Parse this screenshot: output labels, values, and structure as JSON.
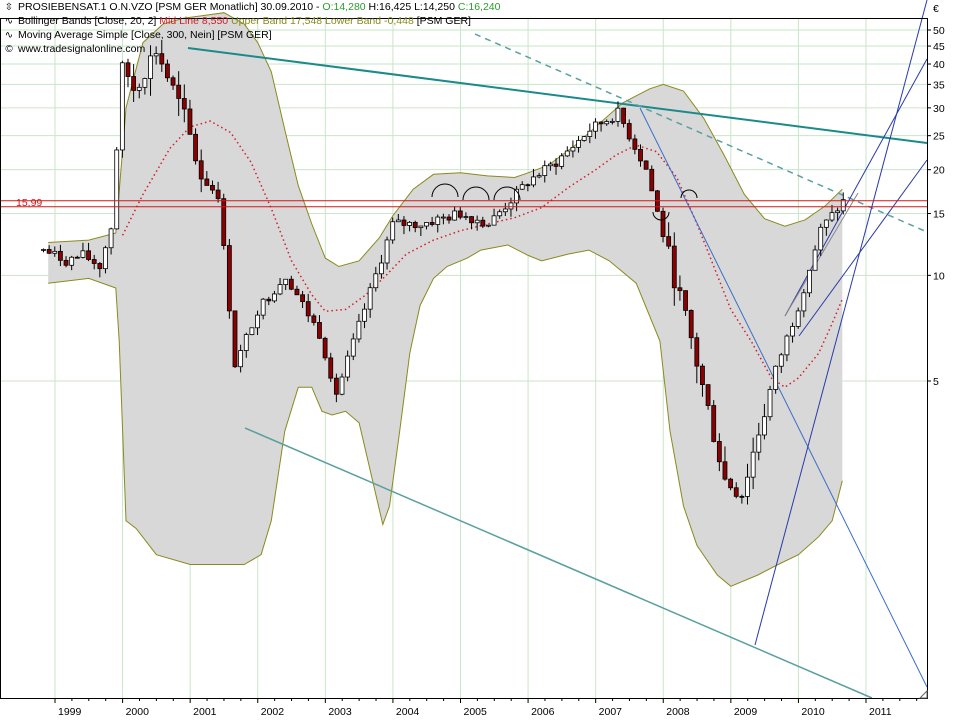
{
  "legend": {
    "line1_prefix": "PROSIEBENSAT.1 O.N.VZO [PSM GER  Monatlich] 30.09.2010 - ",
    "line1_open": "O:14,280",
    "line1_hl": " H:16,425 L:14,250 ",
    "line1_close": "C:16,240",
    "line2_prefix": "Bollinger Bands [Close, 20, 2] ",
    "line2_mid": "Mid Line 8,550",
    "line2_upper": " Upper Band 17,548",
    "line2_lower": " Lower Band -0,448",
    "line2_suffix": " [PSM GER]",
    "line3": "Moving Average Simple [Close, 300, Nein] [PSM GER]",
    "line4": "www.tradesignalonline.com"
  },
  "currency_symbol": "€",
  "level_label": "15,99",
  "colors": {
    "candle_up": "#ffffff",
    "candle_down": "#8b0000",
    "band_fill": "#d8d8d8",
    "band_line": "#8a8a1e",
    "midline": "#d0202a",
    "trend_teal": "#1a8a8a",
    "trend_blue": "#2a3aa8",
    "level_red": "#d01818"
  },
  "chart_data": {
    "type": "candlestick",
    "scale": "log",
    "y_ticks": [
      5,
      10,
      15,
      20,
      25,
      30,
      35,
      40,
      45,
      50
    ],
    "x_ticks": [
      "1999",
      "2000",
      "2001",
      "2002",
      "2003",
      "2004",
      "2005",
      "2006",
      "2007",
      "2008",
      "2009",
      "2010",
      "2011"
    ],
    "ylim": [
      1.9,
      58
    ],
    "horizontal_level": 15.99,
    "ohlc_monthly": [
      {
        "date": "1998-11",
        "o": 12.0,
        "h": 12.3,
        "l": 11.5,
        "c": 11.8
      },
      {
        "date": "1999-03",
        "o": 11.5,
        "h": 12.1,
        "l": 10.8,
        "c": 11.0
      },
      {
        "date": "1999-06",
        "o": 11.2,
        "h": 11.8,
        "l": 10.5,
        "c": 11.4
      },
      {
        "date": "1999-09",
        "o": 10.8,
        "h": 11.4,
        "l": 10.0,
        "c": 10.6
      },
      {
        "date": "1999-11",
        "o": 11.5,
        "h": 14.0,
        "l": 11.2,
        "c": 13.8
      },
      {
        "date": "2000-01",
        "o": 17.0,
        "h": 48.0,
        "l": 16.5,
        "c": 40.0
      },
      {
        "date": "2000-03",
        "o": 40.0,
        "h": 45.0,
        "l": 30.0,
        "c": 34.0
      },
      {
        "date": "2000-07",
        "o": 36.0,
        "h": 46.0,
        "l": 34.0,
        "c": 44.0
      },
      {
        "date": "2000-12",
        "o": 30.0,
        "h": 38.0,
        "l": 26.0,
        "c": 28.0
      },
      {
        "date": "2001-03",
        "o": 24.0,
        "h": 29.0,
        "l": 18.0,
        "c": 19.0
      },
      {
        "date": "2001-06",
        "o": 18.0,
        "h": 21.0,
        "l": 16.0,
        "c": 17.0
      },
      {
        "date": "2001-09",
        "o": 14.0,
        "h": 16.0,
        "l": 5.0,
        "c": 5.5
      },
      {
        "date": "2002-01",
        "o": 6.5,
        "h": 9.0,
        "l": 4.6,
        "c": 8.0
      },
      {
        "date": "2002-06",
        "o": 9.0,
        "h": 11.0,
        "l": 8.0,
        "c": 10.0
      },
      {
        "date": "2002-12",
        "o": 6.5,
        "h": 7.5,
        "l": 6.0,
        "c": 6.8
      },
      {
        "date": "2003-03",
        "o": 5.5,
        "h": 6.2,
        "l": 4.4,
        "c": 4.6
      },
      {
        "date": "2003-09",
        "o": 8.0,
        "h": 9.5,
        "l": 7.5,
        "c": 9.0
      },
      {
        "date": "2004-01",
        "o": 12.5,
        "h": 14.5,
        "l": 12.0,
        "c": 14.0
      },
      {
        "date": "2004-06",
        "o": 15.0,
        "h": 16.5,
        "l": 13.0,
        "c": 14.0
      },
      {
        "date": "2005-01",
        "o": 14.0,
        "h": 16.0,
        "l": 13.0,
        "c": 15.0
      },
      {
        "date": "2005-06",
        "o": 14.5,
        "h": 15.5,
        "l": 13.5,
        "c": 14.0
      },
      {
        "date": "2006-01",
        "o": 16.0,
        "h": 19.0,
        "l": 15.5,
        "c": 18.5
      },
      {
        "date": "2006-06",
        "o": 19.0,
        "h": 23.0,
        "l": 18.0,
        "c": 21.0
      },
      {
        "date": "2006-12",
        "o": 22.0,
        "h": 27.0,
        "l": 21.0,
        "c": 26.0
      },
      {
        "date": "2007-05",
        "o": 28.0,
        "h": 30.5,
        "l": 26.5,
        "c": 29.0
      },
      {
        "date": "2007-10",
        "o": 23.0,
        "h": 25.0,
        "l": 19.0,
        "c": 20.0
      },
      {
        "date": "2008-01",
        "o": 16.0,
        "h": 17.0,
        "l": 12.0,
        "c": 13.0
      },
      {
        "date": "2008-06",
        "o": 9.0,
        "h": 10.0,
        "l": 6.0,
        "c": 6.5
      },
      {
        "date": "2008-12",
        "o": 3.0,
        "h": 3.6,
        "l": 2.2,
        "c": 2.6
      },
      {
        "date": "2009-03",
        "o": 2.5,
        "h": 2.9,
        "l": 2.0,
        "c": 2.4
      },
      {
        "date": "2009-06",
        "o": 2.6,
        "h": 3.8,
        "l": 2.5,
        "c": 3.6
      },
      {
        "date": "2009-09",
        "o": 4.5,
        "h": 5.6,
        "l": 4.2,
        "c": 5.4
      },
      {
        "date": "2010-01",
        "o": 7.0,
        "h": 8.5,
        "l": 6.8,
        "c": 8.2
      },
      {
        "date": "2010-05",
        "o": 10.0,
        "h": 14.0,
        "l": 9.5,
        "c": 13.5
      },
      {
        "date": "2010-09",
        "o": 14.28,
        "h": 16.425,
        "l": 14.25,
        "c": 16.24
      }
    ],
    "indicators": {
      "bollinger": {
        "period": 20,
        "stddev": 2,
        "mid": 8.55,
        "upper": 17.548,
        "lower": -0.448
      },
      "sma": {
        "period": 300
      }
    }
  }
}
